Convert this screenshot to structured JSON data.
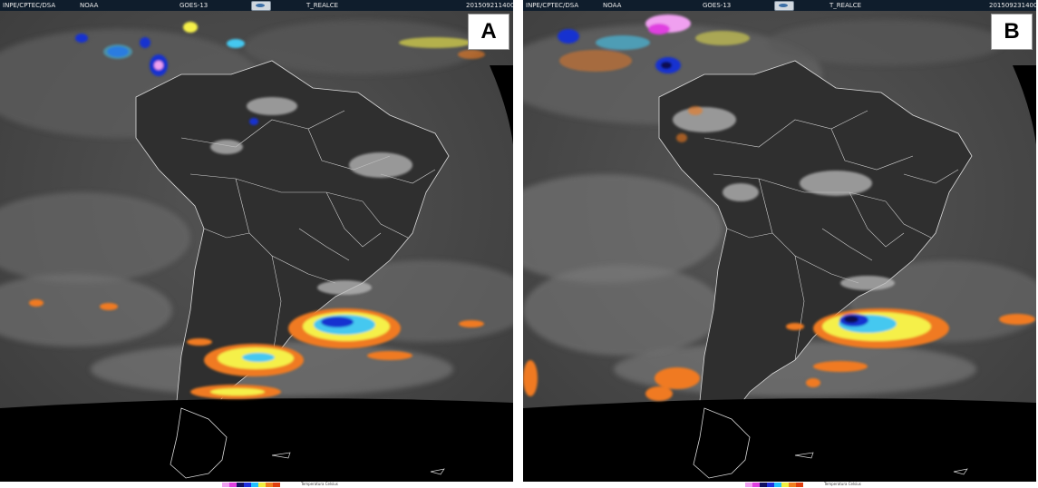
{
  "panels": [
    {
      "label": "A",
      "header": {
        "agency": "INPE/CPTEC/DSA",
        "noaa": "NOAA",
        "satellite": "GOES-13",
        "product": "T_REALCE",
        "timestamp": "201509211400"
      }
    },
    {
      "label": "B",
      "header": {
        "agency": "INPE/CPTEC/DSA",
        "noaa": "NOAA",
        "satellite": "GOES-13",
        "product": "T_REALCE",
        "timestamp": "201509231400"
      }
    }
  ],
  "colorbar": {
    "label": "Temperatura Celsius",
    "colors": [
      "#f0a0f0",
      "#e040e0",
      "#101060",
      "#2030e0",
      "#20c0ff",
      "#f0f040",
      "#f08020",
      "#e04010"
    ]
  },
  "palette": {
    "ocean": "#4a4a4a",
    "land": "#2e2e2e",
    "space": "#000000",
    "borders": "#d8d8d8",
    "cloud_white": "#cfcfcf",
    "storm_orange": "#f07a20",
    "storm_yellow": "#f5f04a",
    "storm_cyan": "#44c8f0",
    "storm_blue": "#1530d0",
    "storm_navy": "#0a0a50"
  }
}
